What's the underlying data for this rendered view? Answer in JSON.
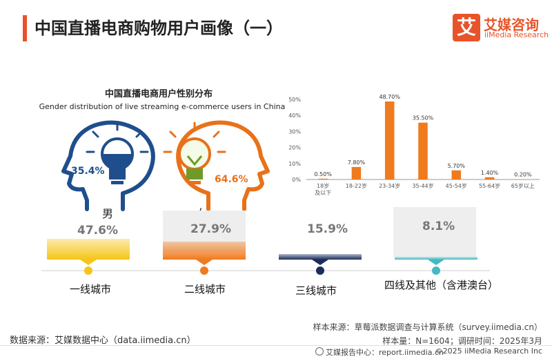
{
  "header": {
    "title": "中国直播电商购物用户画像（一）",
    "logo_icon": "艾",
    "logo_cn": "艾媒咨询",
    "logo_en": "iiMedia Research"
  },
  "gender": {
    "title_cn": "中国直播电商用户性别分布",
    "title_en": "Gender distribution of live streaming e-commerce users in China",
    "male_label": "男",
    "female_label": "女",
    "male_pct": "35.4%",
    "female_pct": "64.6%",
    "male_color": "#1f4e8c",
    "female_color": "#e8711a"
  },
  "city": {
    "tiers": [
      {
        "name": "一线城市",
        "pct": "47.6%",
        "color": "#f5c518"
      },
      {
        "name": "二线城市",
        "pct": "27.9%",
        "color": "#f07a1e"
      },
      {
        "name": "三线城市",
        "pct": "15.9%",
        "color": "#1b2d5c"
      },
      {
        "name": "四线及其他（含港澳台）",
        "pct": "8.1%",
        "color": "#45b8c4"
      }
    ]
  },
  "chart_data": {
    "type": "bar",
    "categories": [
      "18岁\n及以下",
      "18-22岁",
      "23-34岁",
      "35-44岁",
      "45-54岁",
      "55-64岁",
      "65岁以上"
    ],
    "values": [
      0.5,
      7.8,
      48.7,
      35.5,
      5.7,
      1.4,
      0.2
    ],
    "labels": [
      "0.50%",
      "7.80%",
      "48.70%",
      "35.50%",
      "5.70%",
      "1.40%",
      "0.20%"
    ],
    "yticks": [
      "0%",
      "10%",
      "20%",
      "30%",
      "40%",
      "50%"
    ],
    "ylim": [
      0,
      50
    ],
    "bar_color": "#f07a1e",
    "grid": false
  },
  "footer": {
    "source_left": "数据来源：艾媒数据中心（data.iimedia.cn）",
    "sample_source": "样本来源：草莓派数据调查与计算系统（survey.iimedia.cn）",
    "sample_size": "样本量：N=1604；调研时间：2025年3月",
    "report": "艾媒报告中心：report.iimedia.cn",
    "copyright": "©2025  iiMedia Research  Inc"
  }
}
